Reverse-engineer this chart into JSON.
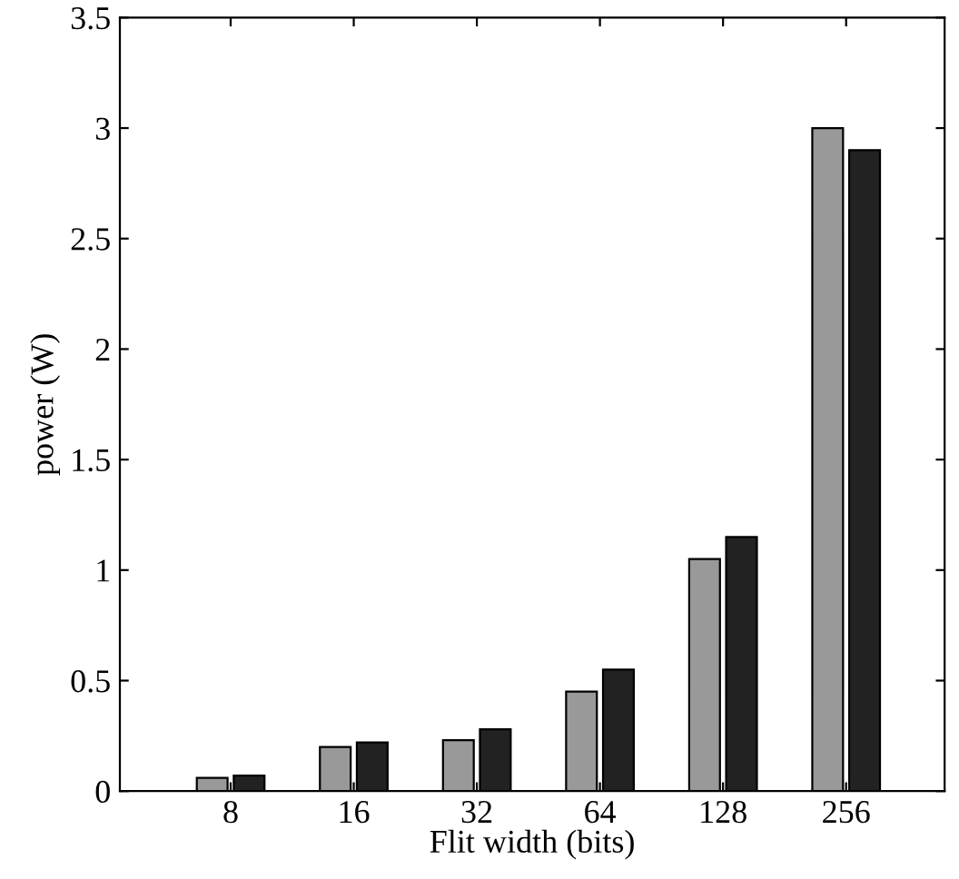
{
  "chart_data": {
    "type": "bar",
    "xlabel": "Flit width (bits)",
    "ylabel": "power (W)",
    "categories": [
      "8",
      "16",
      "32",
      "64",
      "128",
      "256"
    ],
    "series": [
      {
        "color": "#999999",
        "values": [
          0.06,
          0.2,
          0.23,
          0.45,
          1.05,
          3.0
        ]
      },
      {
        "color": "#222222",
        "values": [
          0.07,
          0.22,
          0.28,
          0.55,
          1.15,
          2.9
        ]
      }
    ],
    "ylim": [
      0,
      3.5
    ],
    "yticks": [
      0,
      0.5,
      1,
      1.5,
      2,
      2.5,
      3,
      3.5
    ],
    "grid": false
  }
}
